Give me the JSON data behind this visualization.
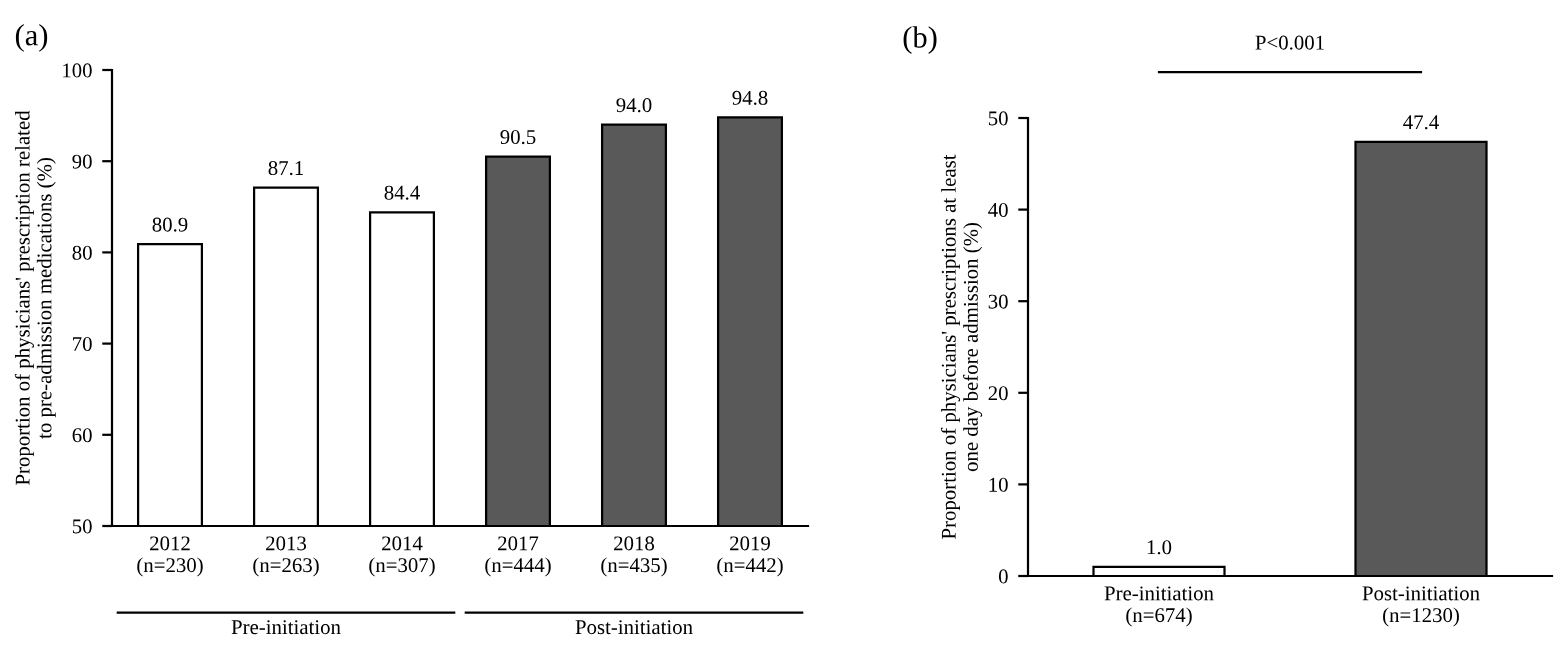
{
  "chart_data": [
    {
      "type": "bar",
      "title": "(a)",
      "ylabel": "Proportion of physicians' prescription related\nto pre-admission medications (%)",
      "categories": [
        "2012\n(n=230)",
        "2013\n(n=263)",
        "2014\n(n=307)",
        "2017\n(n=444)",
        "2018\n(n=435)",
        "2019\n(n=442)"
      ],
      "values": [
        80.9,
        87.1,
        84.4,
        90.5,
        94.0,
        94.8
      ],
      "value_labels": [
        "80.9",
        "87.1",
        "84.4",
        "90.5",
        "94.0",
        "94.8"
      ],
      "colors": [
        "#ffffff",
        "#ffffff",
        "#ffffff",
        "#595959",
        "#595959",
        "#595959"
      ],
      "ylim": [
        50,
        100
      ],
      "yticks": [
        50,
        60,
        70,
        80,
        90,
        100
      ],
      "grid": false,
      "annotations": [
        "Pre-initiation",
        "Post-initiation"
      ]
    },
    {
      "type": "bar",
      "title": "(b)",
      "ylabel": "Proportion of physicians' prescriptions at least\none day before admission (%)",
      "categories": [
        "Pre-initiation\n(n=674)",
        "Post-initiation\n(n=1230)"
      ],
      "values": [
        1.0,
        47.4
      ],
      "value_labels": [
        "1.0",
        "47.4"
      ],
      "colors": [
        "#ffffff",
        "#595959"
      ],
      "ylim": [
        0,
        50
      ],
      "yticks": [
        0,
        10,
        20,
        30,
        40,
        50
      ],
      "grid": false,
      "annotations": [
        "P<0.001"
      ]
    }
  ]
}
